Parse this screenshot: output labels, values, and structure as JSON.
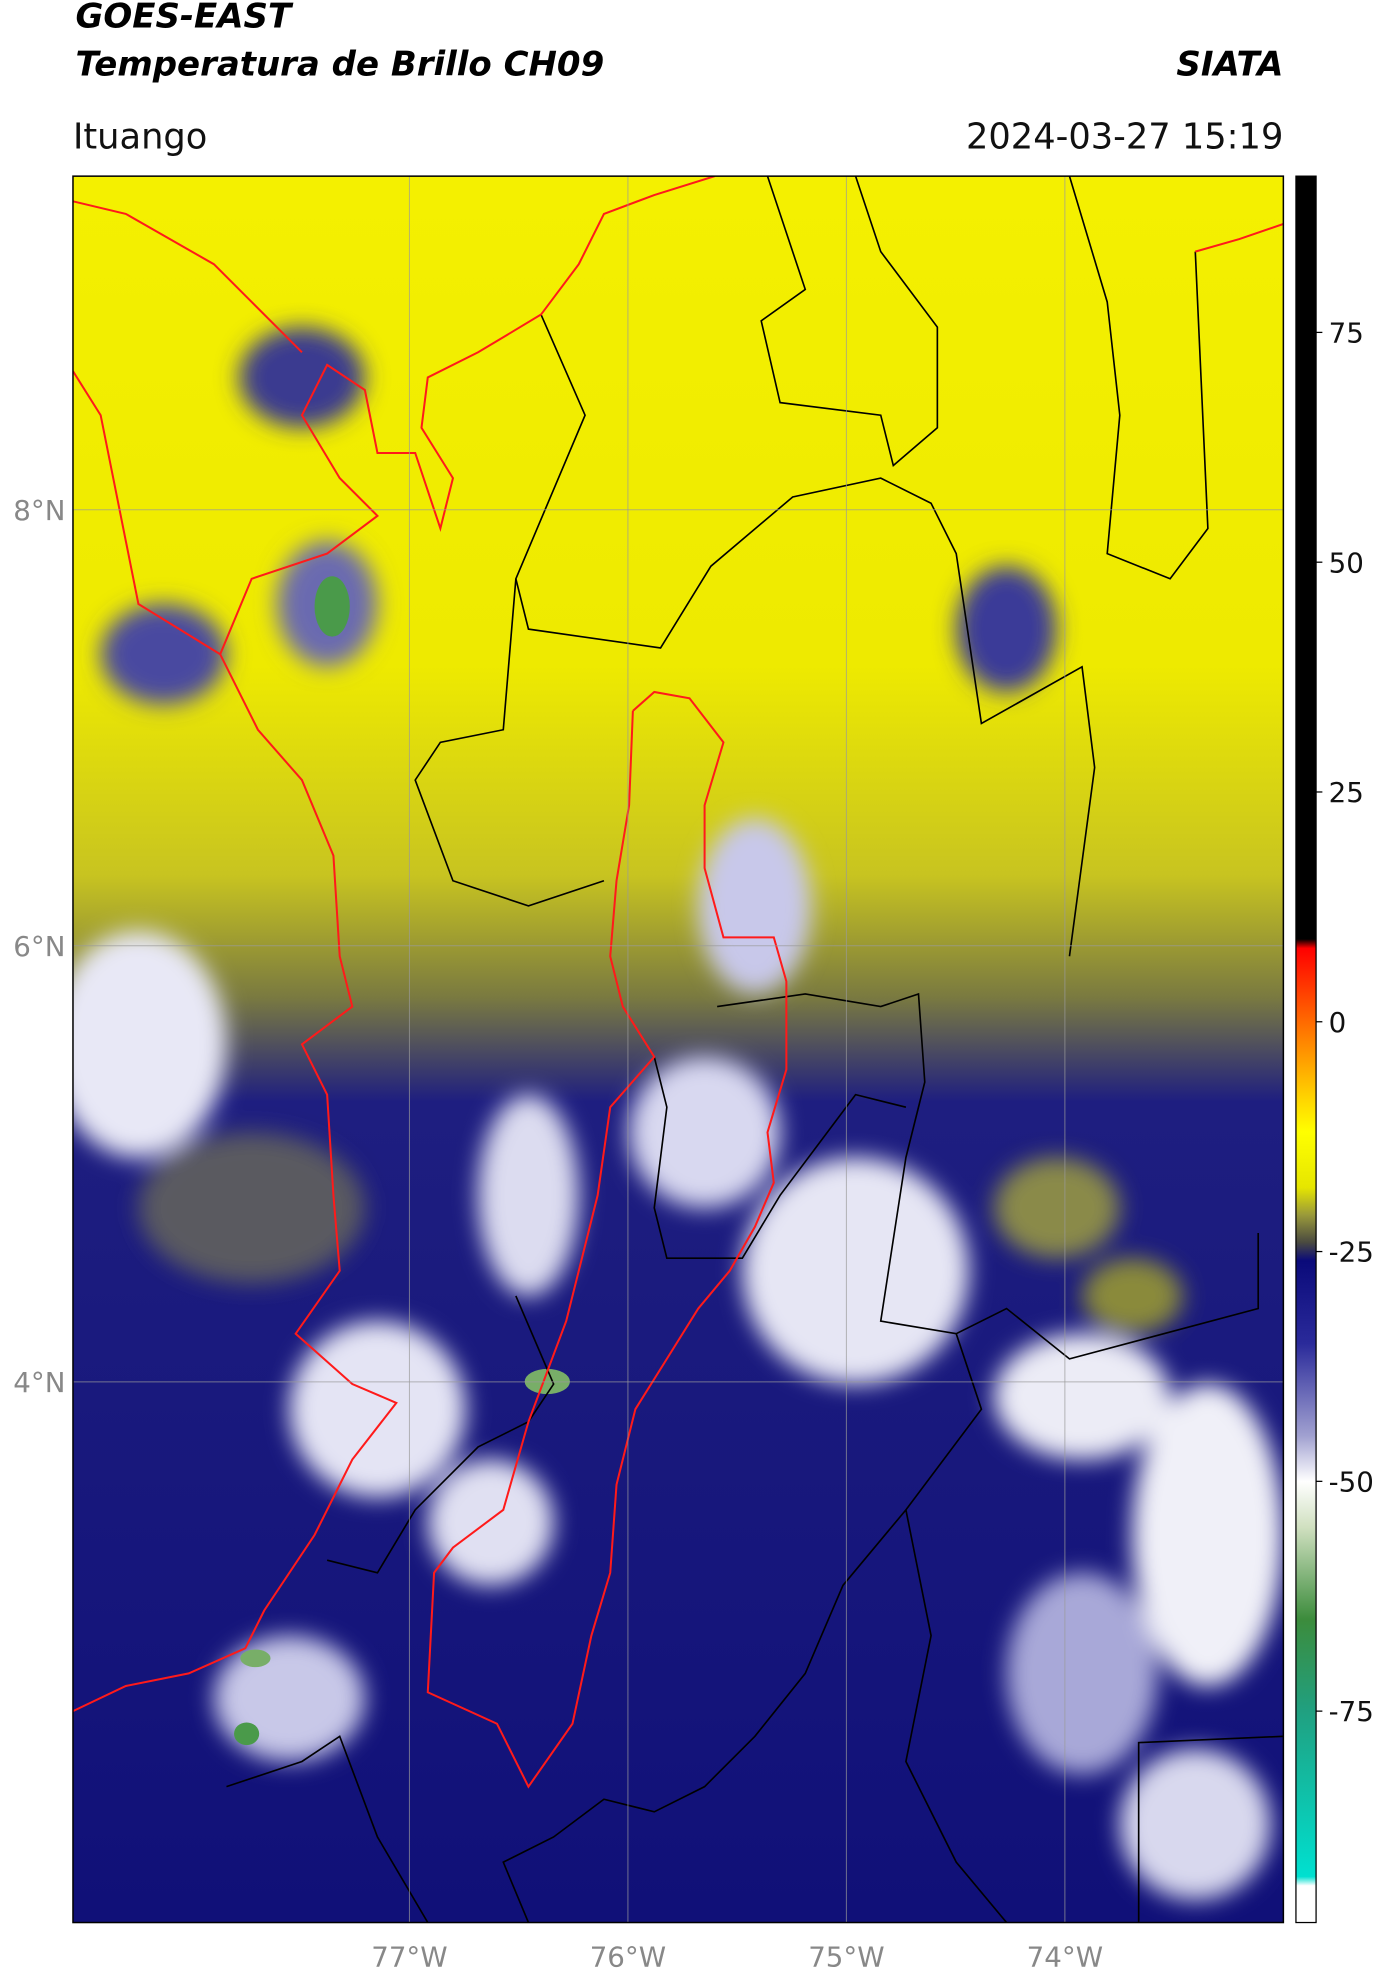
{
  "header": {
    "satellite": "GOES-EAST",
    "product": "Temperatura de Brillo CH09",
    "agency": "SIATA",
    "region": "Ituango",
    "timestamp": "2024-03-27 15:19"
  },
  "map": {
    "xlim": [
      -78.54,
      -73.0
    ],
    "ylim": [
      1.52,
      9.53
    ],
    "xticks": [
      {
        "value": -77,
        "label": "77°W"
      },
      {
        "value": -76,
        "label": "76°W"
      },
      {
        "value": -75,
        "label": "75°W"
      },
      {
        "value": -74,
        "label": "74°W"
      }
    ],
    "yticks": [
      {
        "value": 4,
        "label": "4°N"
      },
      {
        "value": 6,
        "label": "6°N"
      },
      {
        "value": 8,
        "label": "8°N"
      }
    ],
    "grid": true
  },
  "colorbar": {
    "lim": [
      -98,
      92
    ],
    "ticks": [
      -75,
      -50,
      -25,
      0,
      25,
      50,
      75
    ],
    "stops": [
      {
        "value": 92,
        "color": "#000000"
      },
      {
        "value": 9,
        "color": "#000000"
      },
      {
        "value": 8,
        "color": "#ff0000"
      },
      {
        "value": 0,
        "color": "#ff6a00"
      },
      {
        "value": -8,
        "color": "#ffd000"
      },
      {
        "value": -12,
        "color": "#ffff00"
      },
      {
        "value": -18,
        "color": "#e6e600"
      },
      {
        "value": -21,
        "color": "#9a9a3a"
      },
      {
        "value": -24,
        "color": "#4a4a40"
      },
      {
        "value": -26,
        "color": "#0a0a7a"
      },
      {
        "value": -35,
        "color": "#2a2a9a"
      },
      {
        "value": -45,
        "color": "#a0a0d0"
      },
      {
        "value": -50,
        "color": "#ffffff"
      },
      {
        "value": -55,
        "color": "#d0e0c0"
      },
      {
        "value": -65,
        "color": "#3c8c3c"
      },
      {
        "value": -75,
        "color": "#20a080"
      },
      {
        "value": -93,
        "color": "#00e0d0"
      },
      {
        "value": -94,
        "color": "#ffffff"
      },
      {
        "value": -98,
        "color": "#ffffff"
      }
    ]
  }
}
